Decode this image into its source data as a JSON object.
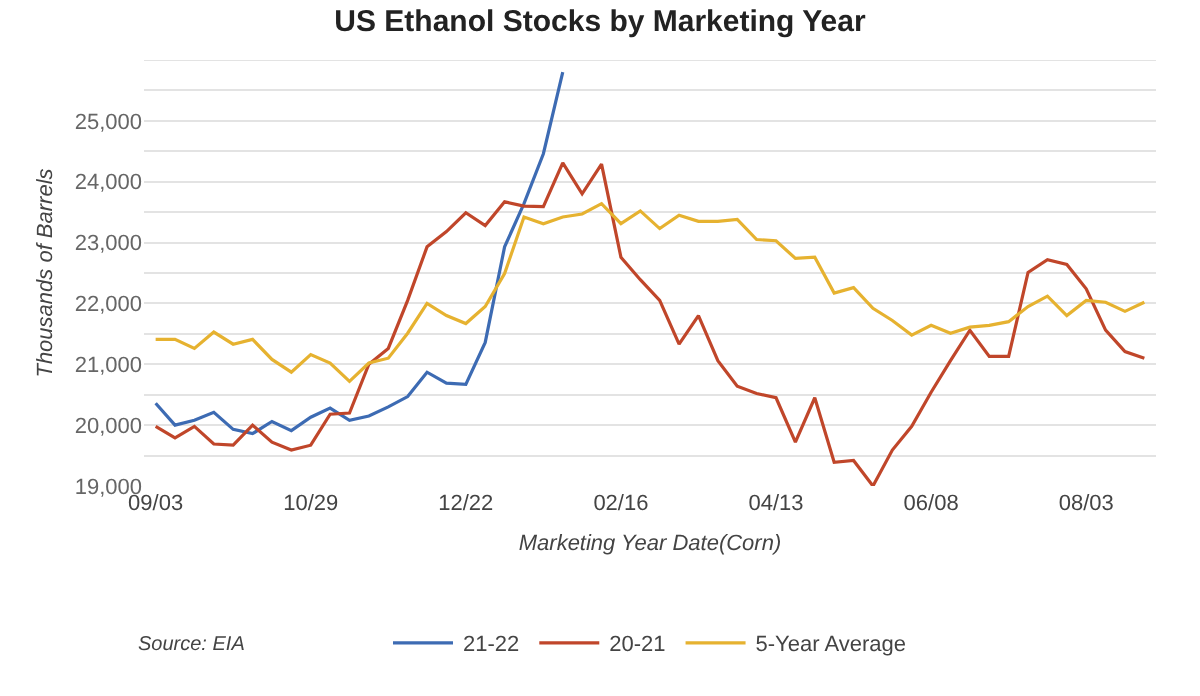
{
  "chart_data": {
    "type": "line",
    "title": "US Ethanol Stocks by Marketing Year",
    "xlabel": "Marketing Year Date(Corn)",
    "ylabel": "Thousands of Barrels",
    "annotations": [
      "Source: EIA"
    ],
    "categories": [
      "09/03",
      null,
      null,
      null,
      null,
      null,
      null,
      null,
      "10/29",
      null,
      null,
      null,
      null,
      null,
      null,
      null,
      "12/22",
      null,
      null,
      null,
      null,
      null,
      null,
      null,
      "02/16",
      null,
      null,
      null,
      null,
      null,
      null,
      null,
      "04/13",
      null,
      null,
      null,
      null,
      null,
      null,
      null,
      "06/08",
      null,
      null,
      null,
      null,
      null,
      null,
      null,
      "08/03",
      null,
      null,
      null
    ],
    "series": [
      {
        "name": "21-22",
        "color": "#3d6bb3",
        "values": [
          20360,
          20000,
          20080,
          20210,
          19930,
          19860,
          20060,
          19910,
          20130,
          20280,
          20080,
          20150,
          20300,
          20470,
          20870,
          20690,
          20670,
          21360,
          22930,
          23640,
          24460,
          25800,
          null,
          null,
          null,
          null,
          null,
          null,
          null,
          null,
          null,
          null,
          null,
          null,
          null,
          null,
          null,
          null,
          null,
          null,
          null,
          null,
          null,
          null,
          null,
          null,
          null,
          null,
          null,
          null,
          null,
          null
        ]
      },
      {
        "name": "20-21",
        "color": "#c0462a",
        "values": [
          19980,
          19790,
          19980,
          19690,
          19670,
          20000,
          19720,
          19590,
          19670,
          20180,
          20200,
          21000,
          21260,
          22050,
          22930,
          23180,
          23490,
          23280,
          23670,
          23600,
          23590,
          24310,
          23800,
          24290,
          22760,
          22390,
          22050,
          21330,
          21800,
          21060,
          20640,
          20520,
          20450,
          19720,
          20450,
          19390,
          19420,
          19000,
          19590,
          19980,
          20540,
          21060,
          21560,
          21130,
          21130,
          22510,
          22720,
          22640,
          22240,
          21560,
          21210,
          21100
        ]
      },
      {
        "name": "5-Year Average",
        "color": "#e6b230",
        "values": [
          21410,
          21410,
          21260,
          21530,
          21330,
          21410,
          21080,
          20870,
          21160,
          21020,
          20720,
          21020,
          21100,
          21510,
          22000,
          21800,
          21670,
          21950,
          22490,
          23420,
          23310,
          23420,
          23470,
          23640,
          23310,
          23520,
          23230,
          23450,
          23350,
          23350,
          23380,
          23050,
          23030,
          22740,
          22760,
          22170,
          22260,
          21920,
          21720,
          21480,
          21640,
          21510,
          21610,
          21640,
          21700,
          21950,
          22120,
          21800,
          22050,
          22020,
          21870,
          22020
        ]
      }
    ],
    "ylim": [
      19000,
      26000
    ],
    "yticks": [
      {
        "value": 19000,
        "label": "19,000"
      },
      {
        "value": 19500,
        "label": null
      },
      {
        "value": 20000,
        "label": "20,000"
      },
      {
        "value": 20500,
        "label": null
      },
      {
        "value": 21000,
        "label": "21,000"
      },
      {
        "value": 21500,
        "label": null
      },
      {
        "value": 22000,
        "label": "22,000"
      },
      {
        "value": 22500,
        "label": null
      },
      {
        "value": 23000,
        "label": "23,000"
      },
      {
        "value": 23500,
        "label": null
      },
      {
        "value": 24000,
        "label": "24,000"
      },
      {
        "value": 24500,
        "label": null
      },
      {
        "value": 25000,
        "label": "25,000"
      },
      {
        "value": 25500,
        "label": null
      }
    ],
    "grid": "y",
    "legend": "bottom",
    "line_style": "solid",
    "marker": "none"
  }
}
